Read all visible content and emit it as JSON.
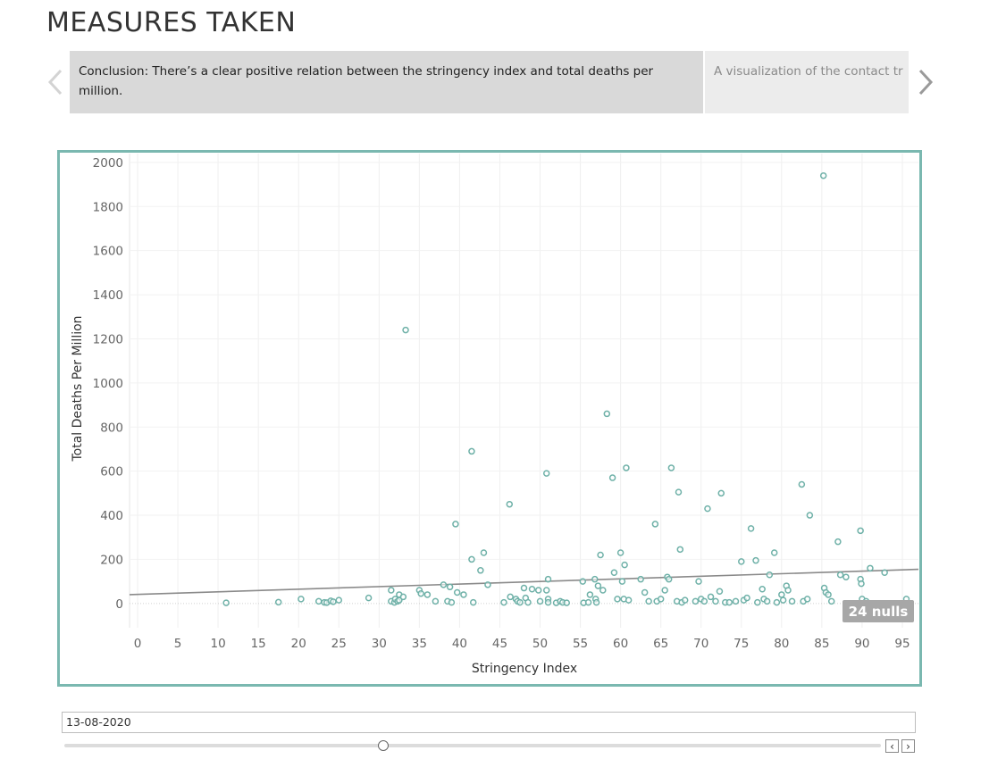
{
  "page": {
    "title": "MEASURES TAKEN"
  },
  "story": {
    "points": [
      {
        "text": "Conclusion: There’s a clear positive relation between the stringency index and total deaths per million."
      },
      {
        "text": "A visualization of the contact tr"
      }
    ]
  },
  "colors": {
    "accent": "#7ab8b0",
    "marker": "#6fb1a8",
    "trend": "#8a8a8a",
    "nulls_badge": "#a7a7a7"
  },
  "chart_data": {
    "type": "scatter",
    "xlabel": "Stringency Index",
    "ylabel": "Total Deaths Per Million",
    "xlim": [
      -1,
      97
    ],
    "ylim": [
      -110,
      2040
    ],
    "x_ticks": [
      0,
      5,
      10,
      15,
      20,
      25,
      30,
      35,
      40,
      45,
      50,
      55,
      60,
      65,
      70,
      75,
      80,
      85,
      90,
      95
    ],
    "y_ticks": [
      0,
      200,
      400,
      600,
      800,
      1000,
      1200,
      1400,
      1600,
      1800,
      2000
    ],
    "grid": true,
    "trend_line": {
      "x": [
        -1,
        97
      ],
      "y": [
        40,
        155
      ]
    },
    "nulls_label": "24 nulls",
    "points": [
      [
        11,
        3
      ],
      [
        17.5,
        6
      ],
      [
        20.3,
        20
      ],
      [
        22.5,
        10
      ],
      [
        23.2,
        5
      ],
      [
        23.5,
        4
      ],
      [
        24,
        12
      ],
      [
        24.3,
        8
      ],
      [
        25,
        15
      ],
      [
        28.7,
        25
      ],
      [
        31.5,
        60
      ],
      [
        31.5,
        10
      ],
      [
        31.9,
        5
      ],
      [
        32,
        20
      ],
      [
        32.3,
        10
      ],
      [
        32.5,
        40
      ],
      [
        32.5,
        15
      ],
      [
        33,
        30
      ],
      [
        33.3,
        1240
      ],
      [
        35,
        60
      ],
      [
        35.2,
        45
      ],
      [
        36,
        40
      ],
      [
        37,
        10
      ],
      [
        38,
        85
      ],
      [
        38.5,
        10
      ],
      [
        38.8,
        75
      ],
      [
        39,
        5
      ],
      [
        39.5,
        360
      ],
      [
        39.7,
        50
      ],
      [
        40.5,
        40
      ],
      [
        41.5,
        690
      ],
      [
        41.5,
        200
      ],
      [
        41.7,
        5
      ],
      [
        42.6,
        150
      ],
      [
        43,
        230
      ],
      [
        43.5,
        85
      ],
      [
        45.5,
        5
      ],
      [
        46.2,
        450
      ],
      [
        46.3,
        30
      ],
      [
        47,
        20
      ],
      [
        47.2,
        10
      ],
      [
        47.5,
        5
      ],
      [
        48,
        70
      ],
      [
        48.2,
        25
      ],
      [
        48.5,
        5
      ],
      [
        49,
        65
      ],
      [
        49.8,
        60
      ],
      [
        50,
        10
      ],
      [
        50.8,
        590
      ],
      [
        50.8,
        60
      ],
      [
        51,
        110
      ],
      [
        51,
        20
      ],
      [
        51,
        5
      ],
      [
        52,
        3
      ],
      [
        52.5,
        10
      ],
      [
        52.8,
        5
      ],
      [
        53.3,
        3
      ],
      [
        55.3,
        100
      ],
      [
        55.4,
        3
      ],
      [
        56,
        5
      ],
      [
        56.2,
        40
      ],
      [
        56.8,
        110
      ],
      [
        56.9,
        20
      ],
      [
        57,
        5
      ],
      [
        57.2,
        80
      ],
      [
        57.5,
        220
      ],
      [
        57.8,
        60
      ],
      [
        58.3,
        860
      ],
      [
        59,
        570
      ],
      [
        59.2,
        140
      ],
      [
        59.6,
        20
      ],
      [
        60,
        230
      ],
      [
        60.2,
        100
      ],
      [
        60.4,
        20
      ],
      [
        60.5,
        175
      ],
      [
        60.7,
        615
      ],
      [
        61,
        15
      ],
      [
        62.5,
        110
      ],
      [
        63,
        50
      ],
      [
        63.5,
        10
      ],
      [
        64.3,
        360
      ],
      [
        64.5,
        10
      ],
      [
        65,
        20
      ],
      [
        65.5,
        60
      ],
      [
        65.8,
        120
      ],
      [
        66,
        110
      ],
      [
        66.3,
        615
      ],
      [
        67,
        10
      ],
      [
        67.2,
        505
      ],
      [
        67.4,
        245
      ],
      [
        67.6,
        5
      ],
      [
        68,
        15
      ],
      [
        69.3,
        10
      ],
      [
        69.7,
        100
      ],
      [
        70,
        20
      ],
      [
        70.4,
        10
      ],
      [
        70.8,
        430
      ],
      [
        71.2,
        30
      ],
      [
        71.8,
        10
      ],
      [
        72.3,
        55
      ],
      [
        72.5,
        500
      ],
      [
        73,
        5
      ],
      [
        73.5,
        5
      ],
      [
        74.3,
        10
      ],
      [
        75,
        190
      ],
      [
        75.3,
        15
      ],
      [
        75.7,
        25
      ],
      [
        76.2,
        340
      ],
      [
        76.8,
        195
      ],
      [
        77,
        5
      ],
      [
        77.6,
        65
      ],
      [
        77.8,
        20
      ],
      [
        78.2,
        10
      ],
      [
        78.5,
        130
      ],
      [
        79.1,
        230
      ],
      [
        79.4,
        5
      ],
      [
        80,
        40
      ],
      [
        80.2,
        15
      ],
      [
        80.6,
        80
      ],
      [
        80.8,
        60
      ],
      [
        81.3,
        10
      ],
      [
        82.5,
        540
      ],
      [
        82.7,
        10
      ],
      [
        83.2,
        20
      ],
      [
        83.5,
        400
      ],
      [
        85.2,
        1940
      ],
      [
        85.3,
        70
      ],
      [
        85.5,
        50
      ],
      [
        85.8,
        40
      ],
      [
        86.2,
        10
      ],
      [
        87,
        280
      ],
      [
        87.3,
        130
      ],
      [
        88,
        120
      ],
      [
        89.8,
        330
      ],
      [
        89.8,
        110
      ],
      [
        89.9,
        90
      ],
      [
        90,
        20
      ],
      [
        90.5,
        10
      ],
      [
        91,
        160
      ],
      [
        92.8,
        140
      ],
      [
        95.5,
        20
      ]
    ]
  },
  "filter": {
    "date_value": "13-08-2020",
    "slider_position_fraction": 0.39
  },
  "controls": {
    "prev_symbol": "‹",
    "next_symbol": "›"
  }
}
